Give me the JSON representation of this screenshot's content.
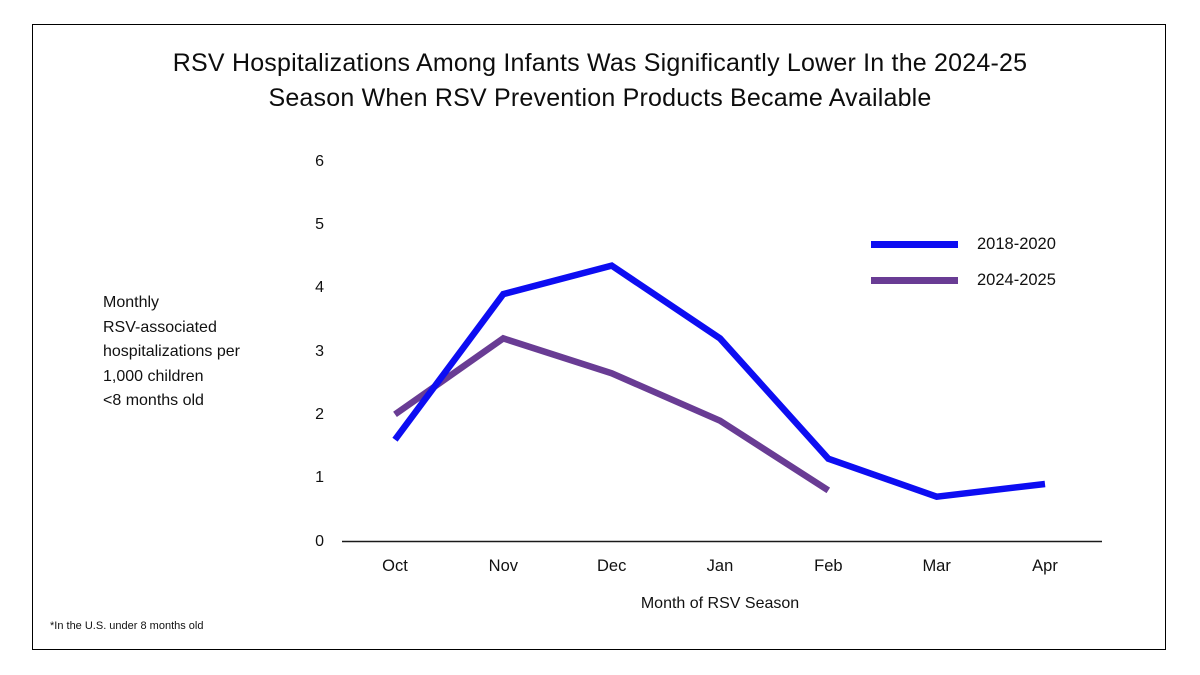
{
  "title": {
    "line1": "RSV Hospitalizations Among Infants Was Significantly Lower In the 2024-25",
    "line2": "Season When RSV Prevention Products Became Available"
  },
  "y_axis": {
    "label_lines": [
      "Monthly",
      "RSV-associated",
      "hospitalizations per",
      "1,000 children",
      "<8 months old"
    ],
    "ticks": [
      6,
      5,
      4,
      3,
      2,
      1,
      0
    ]
  },
  "x_axis": {
    "title": "Month of RSV Season",
    "categories": [
      "Oct",
      "Nov",
      "Dec",
      "Jan",
      "Feb",
      "Mar",
      "Apr"
    ]
  },
  "legend": {
    "items": [
      {
        "label": "2018-2020",
        "color": "#0d0df2"
      },
      {
        "label": "2024-2025",
        "color": "#693c94"
      }
    ]
  },
  "footnote": "*In the U.S. under 8 months old",
  "colors": {
    "series_2018_2020": "#0d0df2",
    "series_2024_2025": "#693c94",
    "axis": "#1a1a1a",
    "border": "#000000"
  },
  "chart_data": {
    "type": "line",
    "title": "RSV Hospitalizations Among Infants Was Significantly Lower In the 2024-25 Season When RSV Prevention Products Became Available",
    "categories": [
      "Oct",
      "Nov",
      "Dec",
      "Jan",
      "Feb",
      "Mar",
      "Apr"
    ],
    "series": [
      {
        "name": "2018-2020",
        "color": "#0d0df2",
        "values": [
          1.6,
          3.9,
          4.35,
          3.2,
          1.3,
          0.7,
          0.9
        ]
      },
      {
        "name": "2024-2025",
        "color": "#693c94",
        "values": [
          2.0,
          3.2,
          2.65,
          1.9,
          0.8,
          null,
          null
        ]
      }
    ],
    "xlabel": "Month of RSV Season",
    "ylabel": "Monthly RSV-associated hospitalizations per 1,000 children <8 months old",
    "ylim": [
      0,
      6
    ],
    "y_tick_step": 1,
    "grid": false,
    "legend_position": "upper right",
    "footnote": "*In the U.S. under 8 months old"
  }
}
